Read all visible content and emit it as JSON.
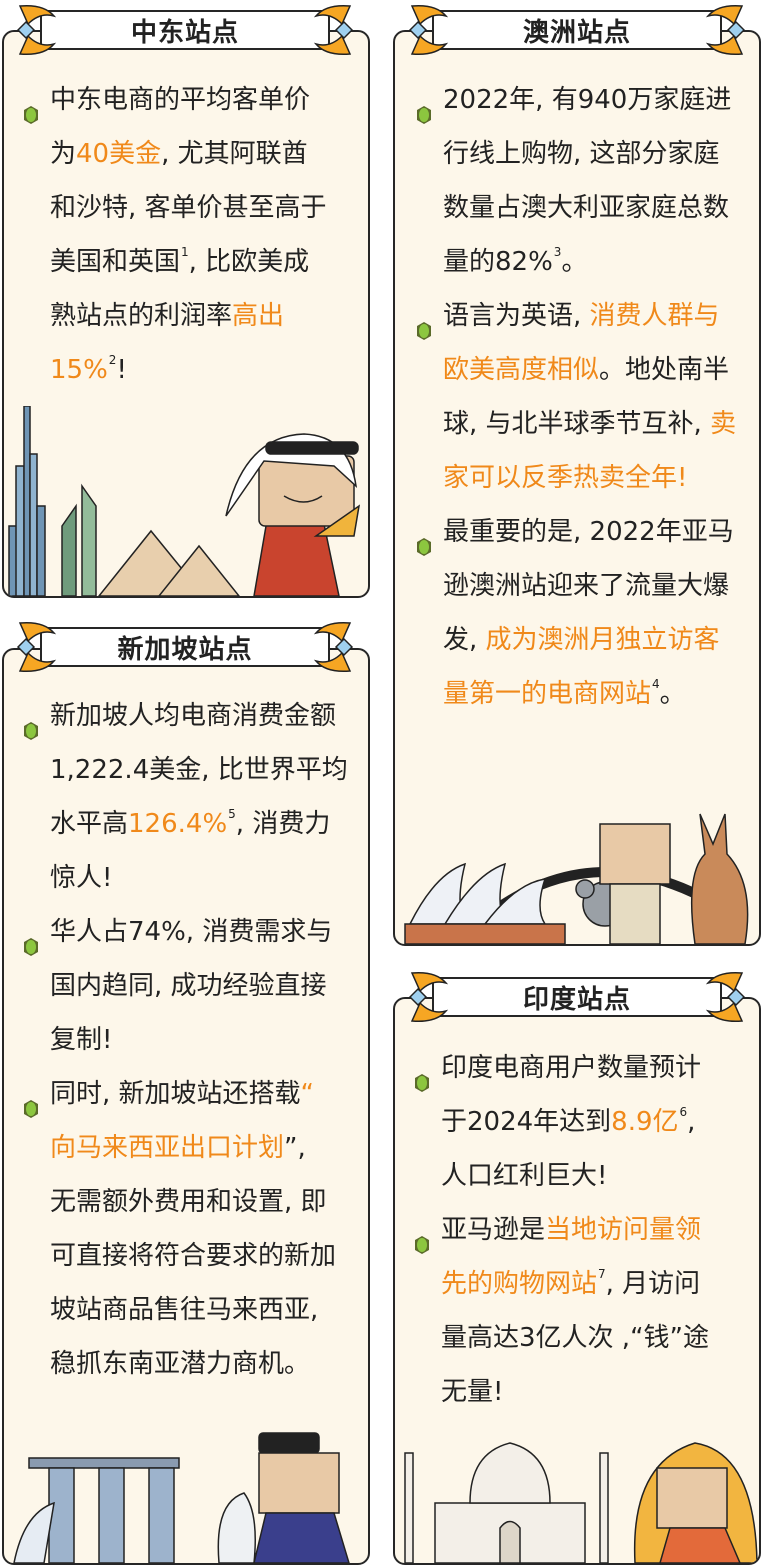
{
  "colors": {
    "highlight": "#f0891a",
    "card_bg": "#fdf7ea",
    "border": "#262626",
    "bullet": "#8cc63f"
  },
  "cards": [
    {
      "title": "中东站点",
      "icon": "green-gem-bullet-icon",
      "bullets": [
        {
          "lines": [
            [
              {
                "t": "中东电商的平均客单价"
              }
            ],
            [
              {
                "t": "为"
              },
              {
                "t": "40美金",
                "hl": true
              },
              {
                "t": ", 尤其阿联酋"
              }
            ],
            [
              {
                "t": "和沙特, 客单价甚至高于"
              }
            ],
            [
              {
                "t": "美国和英国"
              },
              {
                "t": "1",
                "sup": true
              },
              {
                "t": ", 比欧美成"
              }
            ],
            [
              {
                "t": "熟站点的利润率"
              },
              {
                "t": "高出",
                "hl": true
              }
            ],
            [
              {
                "t": "15%",
                "hl": true
              },
              {
                "t": "2",
                "sup": true
              },
              {
                "t": "!"
              }
            ]
          ]
        }
      ]
    },
    {
      "title": "澳洲站点",
      "bullets": [
        {
          "lines": [
            [
              {
                "t": "2022年, 有940万家庭进"
              }
            ],
            [
              {
                "t": "行线上购物, 这部分家庭"
              }
            ],
            [
              {
                "t": "数量占澳大利亚家庭总数"
              }
            ],
            [
              {
                "t": "量的82%"
              },
              {
                "t": "3",
                "sup": true
              },
              {
                "t": "。"
              }
            ]
          ]
        },
        {
          "lines": [
            [
              {
                "t": "语言为英语, "
              },
              {
                "t": "消费人群与",
                "hl": true
              }
            ],
            [
              {
                "t": "欧美高度相似",
                "hl": true
              },
              {
                "t": "。地处南半"
              }
            ],
            [
              {
                "t": "球, 与北半球季节互补, "
              },
              {
                "t": "卖",
                "hl": true
              }
            ],
            [
              {
                "t": "家可以反季热卖全年!",
                "hl": true
              }
            ]
          ]
        },
        {
          "lines": [
            [
              {
                "t": "最重要的是, 2022年亚马"
              }
            ],
            [
              {
                "t": "逊澳洲站迎来了流量大爆"
              }
            ],
            [
              {
                "t": "发, "
              },
              {
                "t": "成为澳洲月独立访客",
                "hl": true
              }
            ],
            [
              {
                "t": "量第一的电商网站",
                "hl": true
              },
              {
                "t": "4",
                "sup": true
              },
              {
                "t": "。"
              }
            ]
          ]
        }
      ]
    },
    {
      "title": "新加坡站点",
      "bullets": [
        {
          "lines": [
            [
              {
                "t": "新加坡人均电商消费金额"
              }
            ],
            [
              {
                "t": "1,222.4美金, 比世界平均"
              }
            ],
            [
              {
                "t": "水平高"
              },
              {
                "t": "126.4%",
                "hl": true
              },
              {
                "t": "5",
                "sup": true
              },
              {
                "t": ", 消费力"
              }
            ],
            [
              {
                "t": "惊人!"
              }
            ]
          ]
        },
        {
          "lines": [
            [
              {
                "t": "华人占74%, 消费需求与"
              }
            ],
            [
              {
                "t": "国内趋同, 成功经验直接"
              }
            ],
            [
              {
                "t": "复制!"
              }
            ]
          ]
        },
        {
          "lines": [
            [
              {
                "t": "同时, 新加坡站还搭载"
              },
              {
                "t": "“",
                "hl": true
              }
            ],
            [
              {
                "t": "向马来西亚出口计划",
                "hl": true
              },
              {
                "t": "”,"
              }
            ],
            [
              {
                "t": "无需额外费用和设置, 即"
              }
            ],
            [
              {
                "t": "可直接将符合要求的新加"
              }
            ],
            [
              {
                "t": "坡站商品售往马来西亚,"
              }
            ],
            [
              {
                "t": "稳抓东南亚潜力商机。"
              }
            ]
          ]
        }
      ]
    },
    {
      "title": "印度站点",
      "bullets": [
        {
          "lines": [
            [
              {
                "t": "印度电商用户数量预计"
              }
            ],
            [
              {
                "t": "于2024年达到"
              },
              {
                "t": "8.9亿",
                "hl": true
              },
              {
                "t": "6",
                "sup": true
              },
              {
                "t": ","
              }
            ],
            [
              {
                "t": "人口红利巨大!"
              }
            ]
          ]
        },
        {
          "lines": [
            [
              {
                "t": "亚马逊是"
              },
              {
                "t": "当地访问量领",
                "hl": true
              }
            ],
            [
              {
                "t": "先的购物网站",
                "hl": true
              },
              {
                "t": "7",
                "sup": true
              },
              {
                "t": ", 月访问"
              }
            ],
            [
              {
                "t": "量高达3亿人次 ,“钱”途"
              }
            ],
            [
              {
                "t": "无量!"
              }
            ]
          ]
        }
      ]
    }
  ]
}
